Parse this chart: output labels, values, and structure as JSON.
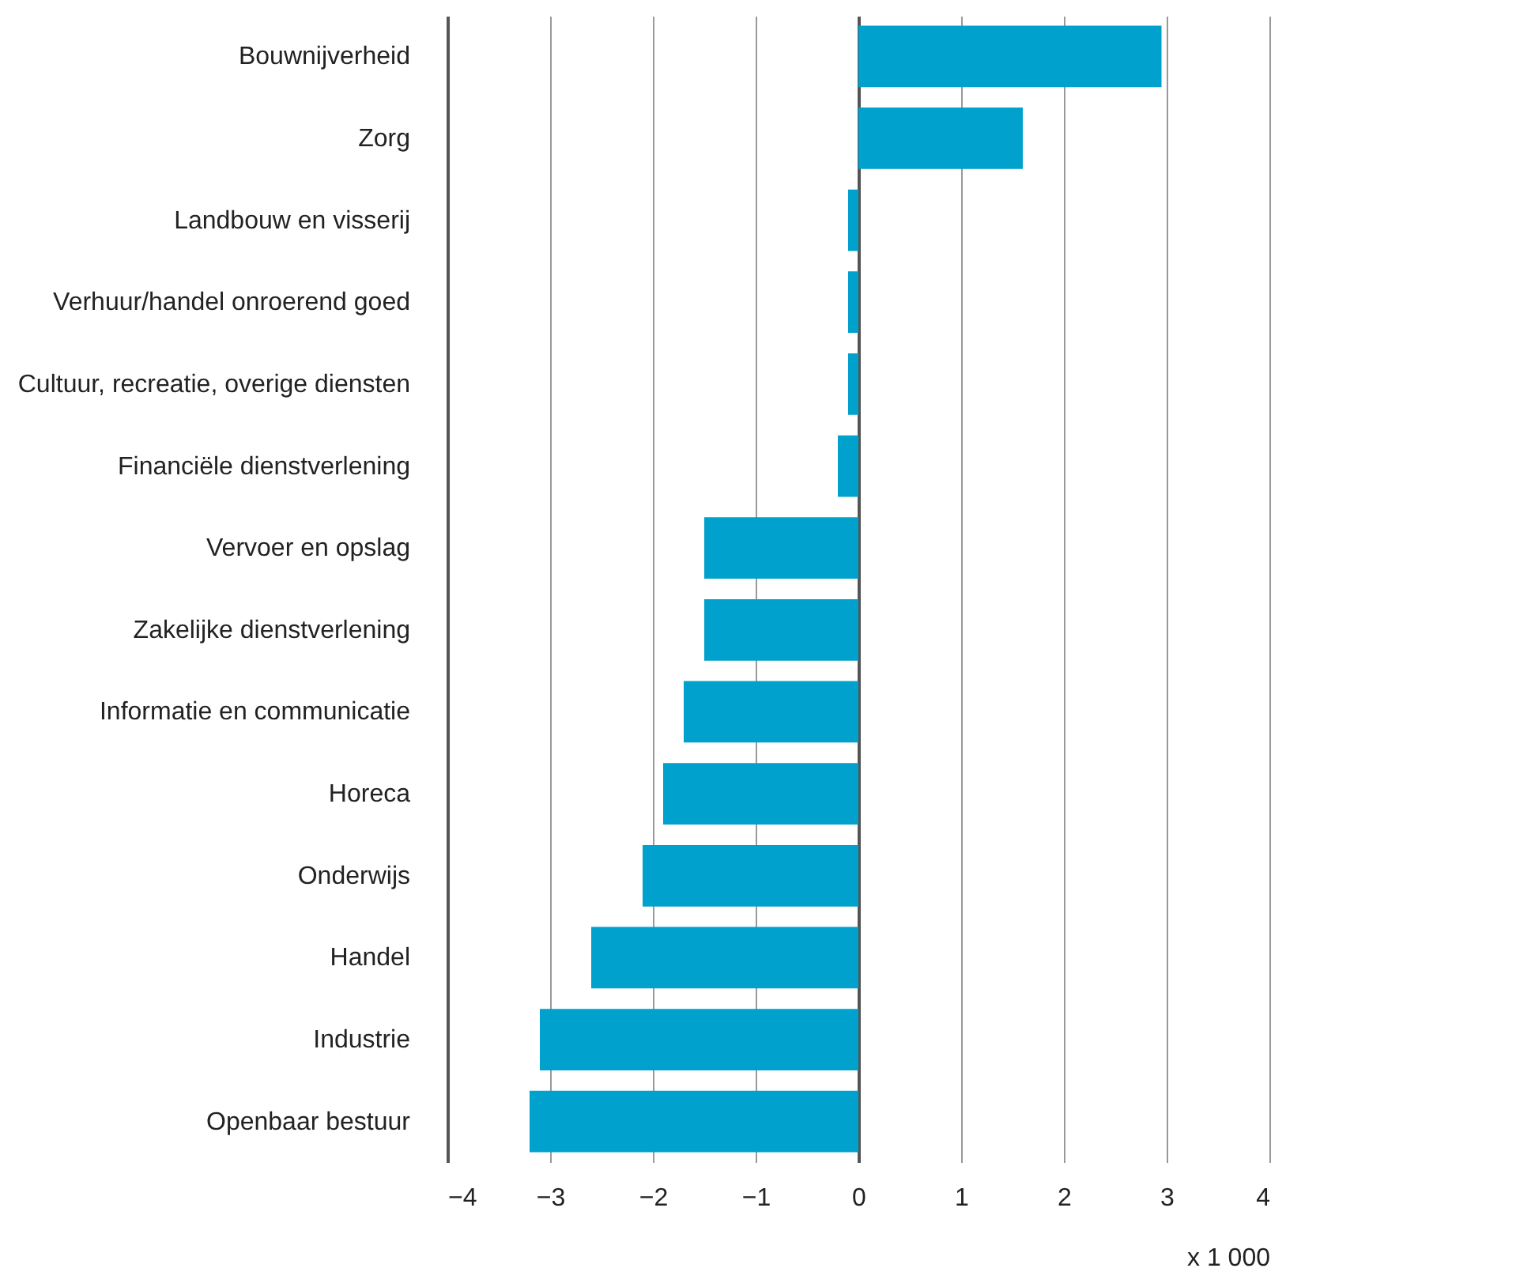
{
  "chart_data": {
    "type": "bar",
    "orientation": "horizontal",
    "xlabel": "x 1 000",
    "categories": [
      "Bouwnijverheid",
      "Zorg",
      "Landbouw en visserij",
      "Verhuur/handel onroerend goed",
      "Cultuur, recreatie, overige diensten",
      "Financiële dienstverlening",
      "Vervoer en opslag",
      "Zakelijke dienstverlening",
      "Informatie en communicatie",
      "Horeca",
      "Onderwijs",
      "Handel",
      "Industrie",
      "Openbaar bestuur"
    ],
    "values": [
      2.95,
      1.6,
      -0.1,
      -0.1,
      -0.1,
      -0.2,
      -1.5,
      -1.5,
      -1.7,
      -1.9,
      -2.1,
      -2.6,
      -3.1,
      -3.2
    ],
    "color": "#00a1cd",
    "xlim": [
      -4,
      4
    ],
    "xticks": [
      -4,
      -3,
      -2,
      -1,
      0,
      1,
      2,
      3,
      4
    ],
    "grid": "x"
  }
}
